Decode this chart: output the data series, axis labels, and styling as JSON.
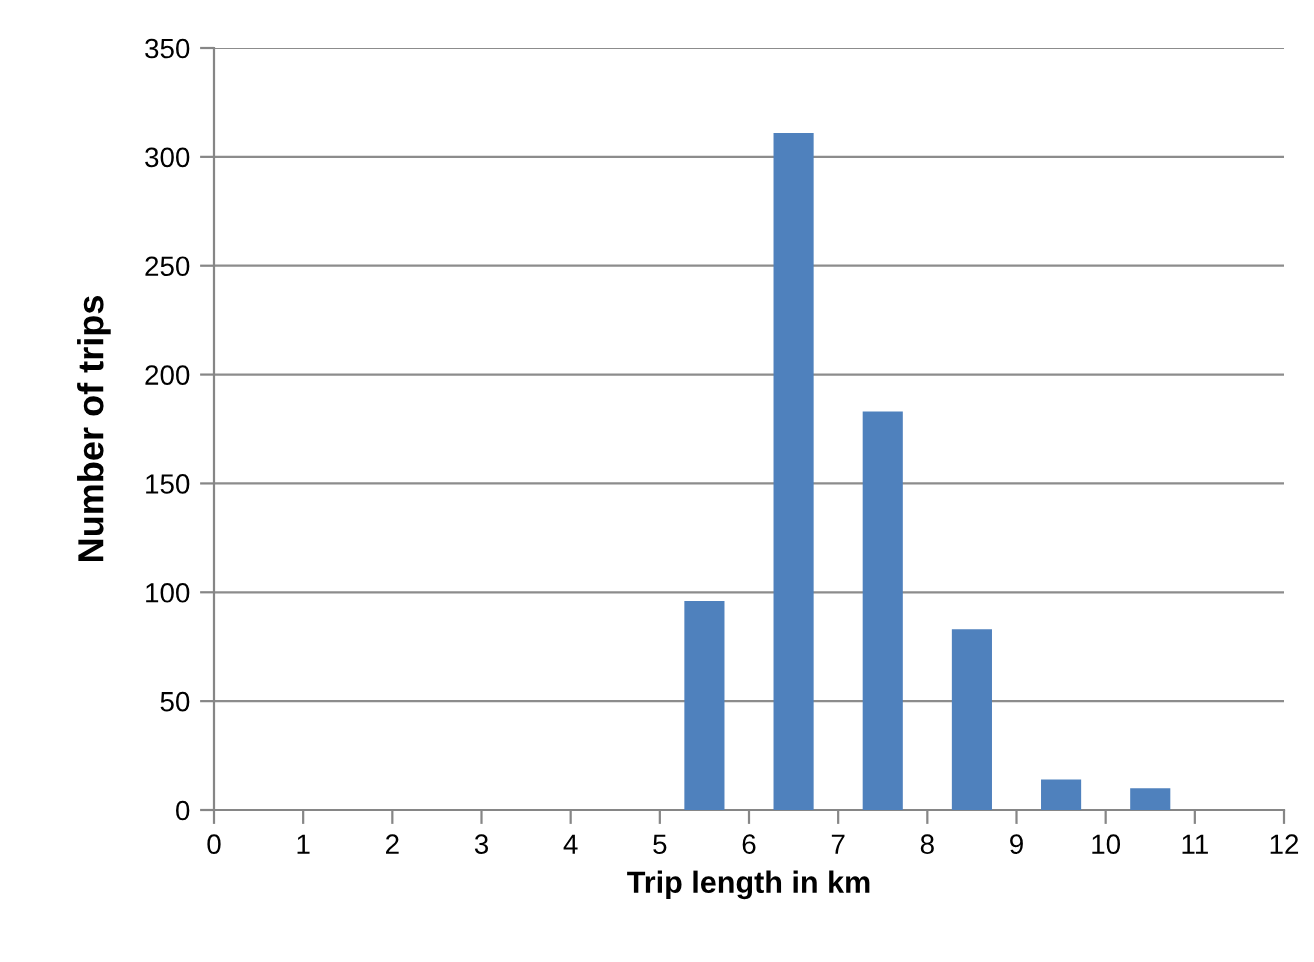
{
  "chart_data": {
    "type": "histogram",
    "xlabel": "Trip length in km",
    "ylabel": "Number of trips",
    "bins": [
      0,
      1,
      2,
      3,
      4,
      5,
      6,
      7,
      8,
      9,
      10,
      11,
      12
    ],
    "values": [
      0,
      0,
      0,
      0,
      0,
      96,
      311,
      183,
      83,
      14,
      10,
      0
    ],
    "color": "#4f81bd",
    "xlim": [
      0,
      12
    ],
    "xticks": [
      0,
      1,
      2,
      3,
      4,
      5,
      6,
      7,
      8,
      9,
      10,
      11,
      12
    ],
    "ylim": [
      0,
      350
    ],
    "yticks": [
      0,
      50,
      100,
      150,
      200,
      250,
      300,
      350
    ],
    "grid": "y",
    "legend": false
  }
}
